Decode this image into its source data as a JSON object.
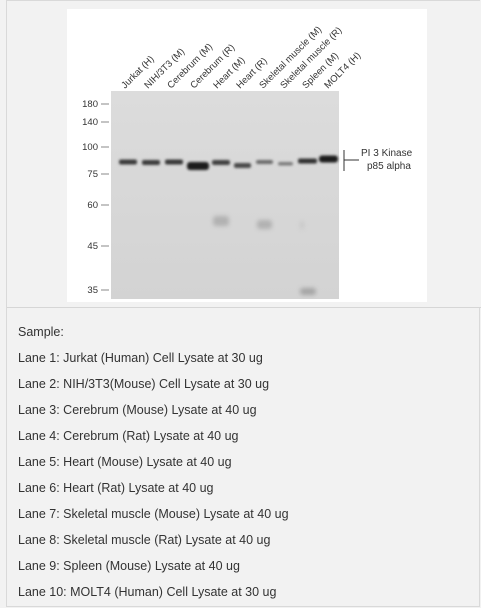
{
  "figure": {
    "lanes": [
      "Jurkat (H)",
      "NIH/3T3 (M)",
      "Cerebrum (M)",
      "Cerebrum (R)",
      "Heart (M)",
      "Heart (R)",
      "Skeletal muscle (M)",
      "Skeletal muscle (R)",
      "Spleen (M)",
      "MOLT4 (H)"
    ],
    "markers": [
      "180",
      "140",
      "100",
      "75",
      "60",
      "45",
      "35"
    ],
    "target_label_line1": "PI 3 Kinase",
    "target_label_line2": "p85 alpha"
  },
  "caption": {
    "title": "Sample:",
    "lanes": [
      "Lane 1: Jurkat (Human) Cell Lysate at 30 ug",
      "Lane 2: NIH/3T3(Mouse) Cell Lysate at 30 ug",
      "Lane 3: Cerebrum (Mouse) Lysate at 40 ug",
      "Lane 4: Cerebrum (Rat) Lysate at 40 ug",
      "Lane 5: Heart (Mouse) Lysate at 40 ug",
      "Lane 6: Heart (Rat) Lysate at 40 ug",
      "Lane 7: Skeletal muscle (Mouse) Lysate at 40 ug",
      "Lane 8: Skeletal muscle (Rat) Lysate at 40 ug",
      "Lane 9: Spleen (Mouse) Lysate at 40 ug",
      "Lane 10: MOLT4 (Human) Cell Lysate at 30 ug"
    ]
  }
}
